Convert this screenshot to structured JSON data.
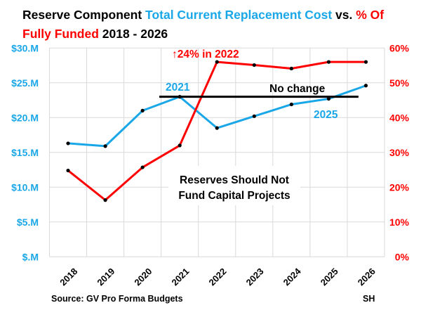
{
  "chart_data": {
    "type": "line",
    "title": {
      "part1": "Reserve Component ",
      "part2": "Total Current Replacement Cost",
      "part3": " vs. ",
      "part4": "% Of",
      "part5": "Fully Funded",
      "part6": " 2018 - 2026"
    },
    "categories": [
      "2018",
      "2019",
      "2020",
      "2021",
      "2022",
      "2023",
      "2024",
      "2025",
      "2026"
    ],
    "left_axis": {
      "ylim": [
        0,
        30
      ],
      "unit": "$M",
      "ticks": [
        "$.M",
        "$5.M",
        "$10.M",
        "$15.M",
        "$20.M",
        "$25.M",
        "$30.M"
      ],
      "color": "#1AA7E8"
    },
    "right_axis": {
      "ylim": [
        0,
        60
      ],
      "unit": "%",
      "ticks": [
        "0%",
        "10%",
        "20%",
        "30%",
        "40%",
        "50%",
        "60%"
      ],
      "color": "#FF0000"
    },
    "grid": true,
    "series": [
      {
        "axis": "left",
        "color": "#1AA7E8",
        "values": [
          16.3,
          15.9,
          21.0,
          23.0,
          18.5,
          20.2,
          21.9,
          22.7,
          24.6
        ]
      },
      {
        "axis": "right",
        "color": "#FF0000",
        "values": [
          24.8,
          16.3,
          25.7,
          32.0,
          56.0,
          55.1,
          54.1,
          56.0,
          56.0
        ]
      }
    ],
    "reference_line": {
      "value": 23.0,
      "axis": "left",
      "from": "2021",
      "to": "2026",
      "color": "#000000"
    },
    "annotations": {
      "jump": "↑24% in 2022",
      "label_2021": "2021",
      "no_change": "No change",
      "label_2025": "2025",
      "box_line1": "Reserves Should Not",
      "box_line2": "Fund Capital Projects"
    },
    "source": "Source: GV Pro Forma Budgets",
    "initials": "SH"
  }
}
